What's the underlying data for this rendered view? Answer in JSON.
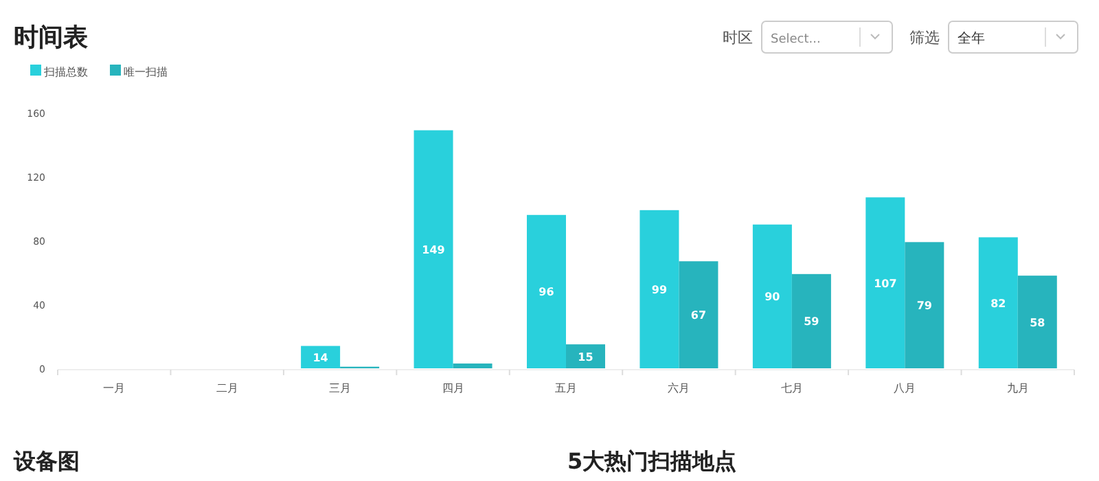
{
  "chart_data": {
    "type": "bar",
    "title": "时间表",
    "categories": [
      "一月",
      "二月",
      "三月",
      "四月",
      "五月",
      "六月",
      "七月",
      "八月",
      "九月"
    ],
    "series": [
      {
        "name": "扫描总数",
        "color": "#29d0dc",
        "values": [
          null,
          null,
          14,
          149,
          96,
          99,
          90,
          107,
          82
        ],
        "value_labels": [
          null,
          null,
          "14",
          "149",
          "96",
          "99",
          "90",
          "107",
          "82"
        ]
      },
      {
        "name": "唯一扫描",
        "color": "#27b4bd",
        "values": [
          null,
          null,
          1,
          3,
          15,
          67,
          59,
          79,
          58
        ],
        "value_labels": [
          null,
          null,
          null,
          null,
          "15",
          "67",
          "59",
          "79",
          "58"
        ]
      }
    ],
    "ylim": [
      0,
      160
    ],
    "yticks": [
      0,
      40,
      80,
      120,
      160
    ],
    "grid": false,
    "legend": "top left",
    "annotations": [
      "时区",
      "Select...",
      "筛选",
      "全年",
      "设备图",
      "5大热门扫描地点"
    ]
  }
}
